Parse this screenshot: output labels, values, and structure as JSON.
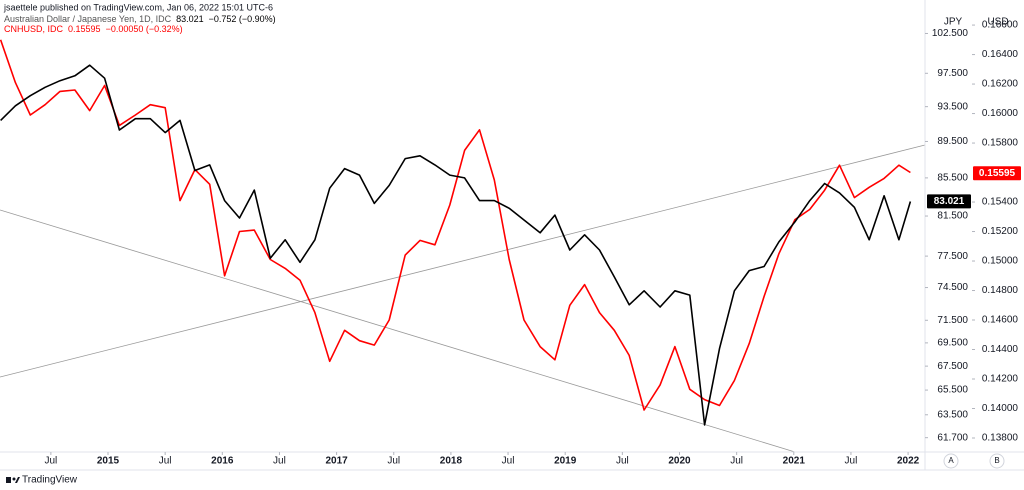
{
  "chart_data": {
    "type": "line",
    "publisher": "jsaettele published on TradingView.com, Jan 06, 2022 15:01 UTC-6",
    "x": [
      2014.06,
      2014.19,
      2014.32,
      2014.45,
      2014.58,
      2014.71,
      2014.84,
      2014.97,
      2015.1,
      2015.24,
      2015.37,
      2015.5,
      2015.63,
      2015.76,
      2015.89,
      2016.02,
      2016.15,
      2016.28,
      2016.42,
      2016.55,
      2016.68,
      2016.81,
      2016.94,
      2017.07,
      2017.2,
      2017.33,
      2017.46,
      2017.6,
      2017.73,
      2017.86,
      2017.99,
      2018.12,
      2018.25,
      2018.38,
      2018.51,
      2018.64,
      2018.78,
      2018.91,
      2019.04,
      2019.17,
      2019.3,
      2019.43,
      2019.56,
      2019.69,
      2019.83,
      2019.96,
      2020.09,
      2020.22,
      2020.35,
      2020.48,
      2020.61,
      2020.74,
      2020.87,
      2021.01,
      2021.14,
      2021.27,
      2021.4,
      2021.53,
      2021.66,
      2021.79,
      2021.92,
      2022.02
    ],
    "xlim": [
      2014.055,
      2022.148
    ],
    "xticks": [
      {
        "value": 2014.5,
        "label": "Jul"
      },
      2015,
      {
        "value": 2015.5,
        "label": "Jul"
      },
      2016,
      {
        "value": 2016.5,
        "label": "Jul"
      },
      2017,
      {
        "value": 2017.5,
        "label": "Jul"
      },
      2018,
      {
        "value": 2018.5,
        "label": "Jul"
      },
      2019,
      {
        "value": 2019.5,
        "label": "Jul"
      },
      2020,
      {
        "value": 2020.5,
        "label": "Jul"
      },
      2021,
      {
        "value": 2021.5,
        "label": "Jul"
      },
      2022
    ],
    "y_unit": "JPY",
    "y2_unit": "USD",
    "ylim": [
      60.6,
      106.9
    ],
    "log_y": true,
    "yticks": [
      {
        "value": 102.5,
        "label": "102.500"
      },
      {
        "value": 97.5,
        "label": "97.500"
      },
      {
        "value": 93.5,
        "label": "93.500"
      },
      {
        "value": 89.5,
        "label": "89.500"
      },
      {
        "value": 85.5,
        "label": "85.500"
      },
      {
        "value": 81.5,
        "label": "81.500"
      },
      {
        "value": 77.5,
        "label": "77.500"
      },
      {
        "value": 74.5,
        "label": "74.500"
      },
      {
        "value": 71.5,
        "label": "71.500"
      },
      {
        "value": 69.5,
        "label": "69.500"
      },
      {
        "value": 67.5,
        "label": "67.500"
      },
      {
        "value": 65.5,
        "label": "65.500"
      },
      {
        "value": 63.5,
        "label": "63.500"
      },
      {
        "value": 61.7,
        "label": "61.700"
      }
    ],
    "y2lim": [
      0.13705,
      0.1677
    ],
    "y2ticks": [
      {
        "value": 0.166,
        "label": "0.16600"
      },
      {
        "value": 0.164,
        "label": "0.16400"
      },
      {
        "value": 0.162,
        "label": "0.16200"
      },
      {
        "value": 0.16,
        "label": "0.16000"
      },
      {
        "value": 0.158,
        "label": "0.15800"
      },
      {
        "value": 0.154,
        "label": "0.15400"
      },
      {
        "value": 0.152,
        "label": "0.15200"
      },
      {
        "value": 0.15,
        "label": "0.15000"
      },
      {
        "value": 0.148,
        "label": "0.14800"
      },
      {
        "value": 0.146,
        "label": "0.14600"
      },
      {
        "value": 0.144,
        "label": "0.14400"
      },
      {
        "value": 0.142,
        "label": "0.14200"
      },
      {
        "value": 0.14,
        "label": "0.14000"
      },
      {
        "value": 0.138,
        "label": "0.13800"
      }
    ],
    "series": [
      {
        "name": "Australian Dollar / Japanese Yen, 1D, IDC",
        "color": "#000000",
        "axis": "y",
        "last": 83.021,
        "change": "−0.752 (−0.90%)",
        "values": [
          91.9,
          93.6,
          94.8,
          95.8,
          96.6,
          97.2,
          98.5,
          96.9,
          90.8,
          92.1,
          92.1,
          90.5,
          91.9,
          86.3,
          86.9,
          83.1,
          81.3,
          84.2,
          77.3,
          79.1,
          76.9,
          79.1,
          84.4,
          86.5,
          85.8,
          82.8,
          84.7,
          87.6,
          87.9,
          86.9,
          85.8,
          85.5,
          83.1,
          83.1,
          82.3,
          81.1,
          79.8,
          81.6,
          78.1,
          79.6,
          78.1,
          75.5,
          72.9,
          74.2,
          72.7,
          74.2,
          73.8,
          62.7,
          69.0,
          74.2,
          76.1,
          76.5,
          78.9,
          80.9,
          83.1,
          84.9,
          83.9,
          82.4,
          79.1,
          83.6,
          79.1,
          83.0
        ]
      },
      {
        "name": "CNHUSD, IDC",
        "color": "#ff0000",
        "axis": "y2",
        "last": 0.15595,
        "change": "−0.00050 (−0.32%)",
        "values": [
          0.165,
          0.1621,
          0.1599,
          0.1606,
          0.1615,
          0.1616,
          0.1602,
          0.1619,
          0.1592,
          0.1599,
          0.1606,
          0.1604,
          0.1541,
          0.1562,
          0.1552,
          0.149,
          0.152,
          0.1521,
          0.1501,
          0.1495,
          0.1487,
          0.1465,
          0.1432,
          0.1453,
          0.1446,
          0.1443,
          0.146,
          0.1504,
          0.1514,
          0.1511,
          0.1538,
          0.1575,
          0.1589,
          0.1555,
          0.1501,
          0.146,
          0.1442,
          0.1433,
          0.147,
          0.1484,
          0.1465,
          0.1453,
          0.1436,
          0.1399,
          0.1416,
          0.1442,
          0.1413,
          0.1406,
          0.1402,
          0.1419,
          0.1444,
          0.1476,
          0.1505,
          0.1528,
          0.1535,
          0.1548,
          0.1565,
          0.1543,
          0.155,
          0.1556,
          0.1565,
          0.156
        ]
      }
    ],
    "scale_buttons": [
      "A",
      "B"
    ],
    "footer": "TradingView"
  }
}
